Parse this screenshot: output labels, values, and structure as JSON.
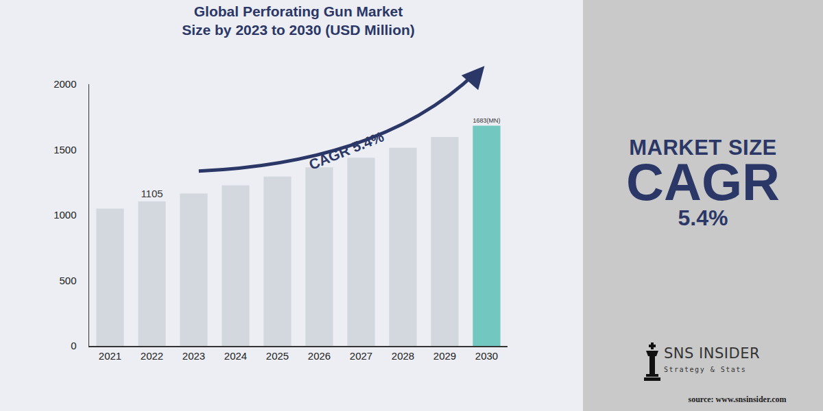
{
  "chart_data": {
    "type": "bar",
    "title": [
      "Global Perforating Gun Market",
      "Size by 2023 to 2030 (USD Million)"
    ],
    "categories": [
      "2021",
      "2022",
      "2023",
      "2024",
      "2025",
      "2026",
      "2027",
      "2028",
      "2029",
      "2030"
    ],
    "values": [
      1050,
      1105,
      1165,
      1228,
      1295,
      1365,
      1438,
      1515,
      1597,
      1683
    ],
    "value_labels": [
      null,
      "1105",
      null,
      null,
      null,
      null,
      null,
      null,
      null,
      "1683(MN)"
    ],
    "colors": [
      "#d3d8df",
      "#d3d8df",
      "#d3d8df",
      "#d3d8df",
      "#d3d8df",
      "#d3d8df",
      "#d3d8df",
      "#d3d8df",
      "#d3d8df",
      "#72c8c1"
    ],
    "ylim": [
      0,
      2000
    ],
    "yticks": [
      0,
      500,
      1000,
      1500,
      2000
    ],
    "grid": false,
    "annotation": "CAGR 5.4%"
  },
  "side_panel": {
    "headline": [
      "MARKET SIZE",
      "CAGR",
      "5.4%"
    ],
    "brand": "SNS INSIDER",
    "tagline": "Strategy & Stats",
    "source": "source: www.snsinsider.com"
  }
}
